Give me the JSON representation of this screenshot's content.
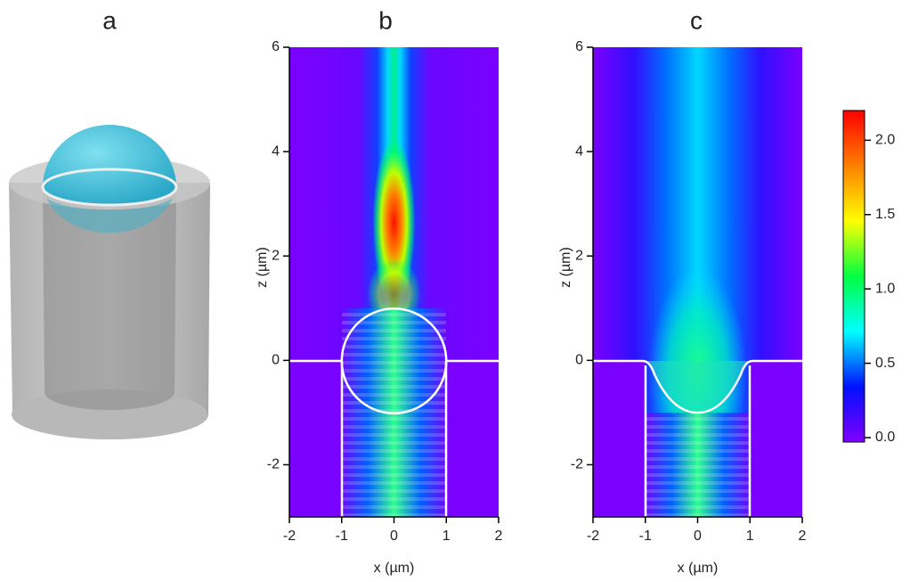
{
  "panel_labels": [
    "a",
    "b",
    "c"
  ],
  "chart_data": [
    {
      "type": "heatmap",
      "xlabel": "x (µm)",
      "ylabel": "z (µm)",
      "xlim": [
        -2,
        2
      ],
      "ylim": [
        -3,
        6
      ],
      "xticks": [
        -2,
        -1,
        0,
        1,
        2
      ],
      "yticks": [
        -2,
        0,
        2,
        4,
        6
      ]
    },
    {
      "type": "heatmap",
      "xlabel": "x (µm)",
      "ylabel": "z (µm)",
      "xlim": [
        -2,
        2
      ],
      "ylim": [
        -3,
        6
      ],
      "xticks": [
        -2,
        -1,
        0,
        1,
        2
      ],
      "yticks": [
        -2,
        0,
        2,
        4,
        6
      ]
    },
    {
      "type": "colorbar",
      "clim": [
        0,
        2.2
      ],
      "colormap": [
        "#7f00ff",
        "#0010ff",
        "#00ffff",
        "#00ff40",
        "#ffff00",
        "#ff8000",
        "#ff0000"
      ],
      "ticks": [
        {
          "value": 0,
          "label": "0.0"
        },
        0.5,
        {
          "value": 1,
          "label": "1.0"
        },
        1.5,
        {
          "value": 2,
          "label": "2.0"
        }
      ]
    }
  ]
}
